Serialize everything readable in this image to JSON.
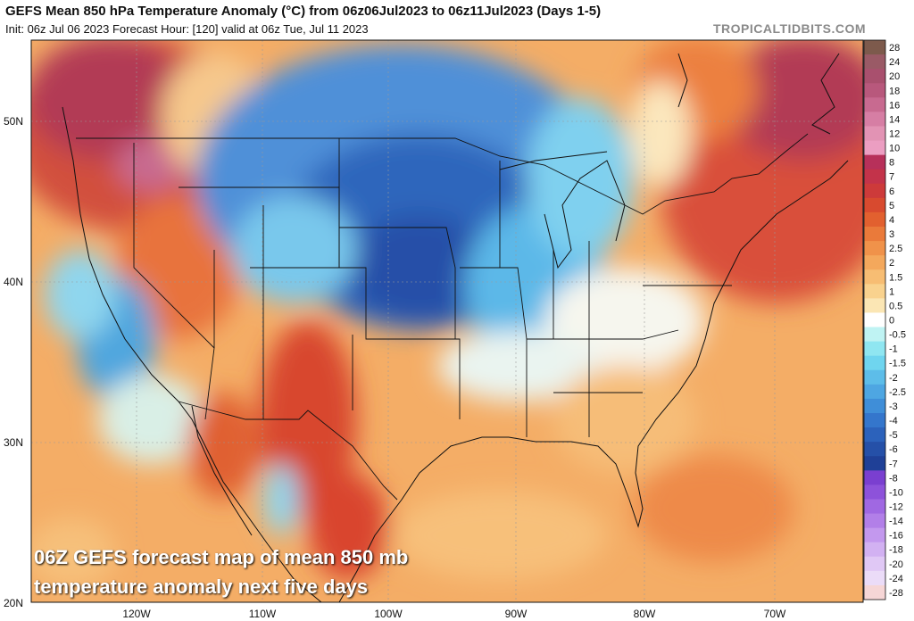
{
  "header": {
    "title": "GEFS Mean 850 hPa Temperature Anomaly (°C) from 06z06Jul2023 to 06z11Jul2023 (Days 1-5)",
    "subtitle": "Init: 06z Jul 06 2023   Forecast Hour: [120]   valid at 06z Tue, Jul 11 2023",
    "brand": "TROPICALTIDBITS.COM"
  },
  "overlay": {
    "line1": "06Z GEFS forecast map of mean 850 mb",
    "line2": "temperature anomaly next five days"
  },
  "axes": {
    "lat_labels": [
      "50N",
      "40N",
      "30N",
      "20N"
    ],
    "lon_labels": [
      "120W",
      "110W",
      "100W",
      "90W",
      "80W",
      "70W"
    ]
  },
  "colorbar": {
    "labels": [
      "28",
      "24",
      "20",
      "18",
      "16",
      "14",
      "12",
      "10",
      "8",
      "7",
      "6",
      "5",
      "4",
      "3",
      "2.5",
      "2",
      "1.5",
      "1",
      "0.5",
      "0",
      "-0.5",
      "-1",
      "-1.5",
      "-2",
      "-2.5",
      "-3",
      "-4",
      "-5",
      "-6",
      "-7",
      "-8",
      "-10",
      "-12",
      "-14",
      "-16",
      "-18",
      "-20",
      "-24",
      "-28"
    ],
    "colors": [
      "#7d5a4c",
      "#9a5a66",
      "#a9506e",
      "#b8587c",
      "#c86a90",
      "#d67ea4",
      "#e293b4",
      "#ec9ec2",
      "#b7305a",
      "#c3334a",
      "#cd3a3a",
      "#d84a2f",
      "#e2602f",
      "#ea7a3a",
      "#f0924a",
      "#f4a85c",
      "#f7bd73",
      "#f9d28e",
      "#fbe6b4",
      "#ffffff",
      "#bff3f3",
      "#8fe6f1",
      "#6fd5ef",
      "#5dbde9",
      "#4ea6e2",
      "#3f8ed8",
      "#3476cc",
      "#2c62bb",
      "#2550a8",
      "#1f4097",
      "#7a3fd0",
      "#8d52da",
      "#a068e2",
      "#b27fe8",
      "#c398ee",
      "#d2b1f2",
      "#e0c8f5",
      "#ebdcf8",
      "#f6d6d6"
    ]
  }
}
